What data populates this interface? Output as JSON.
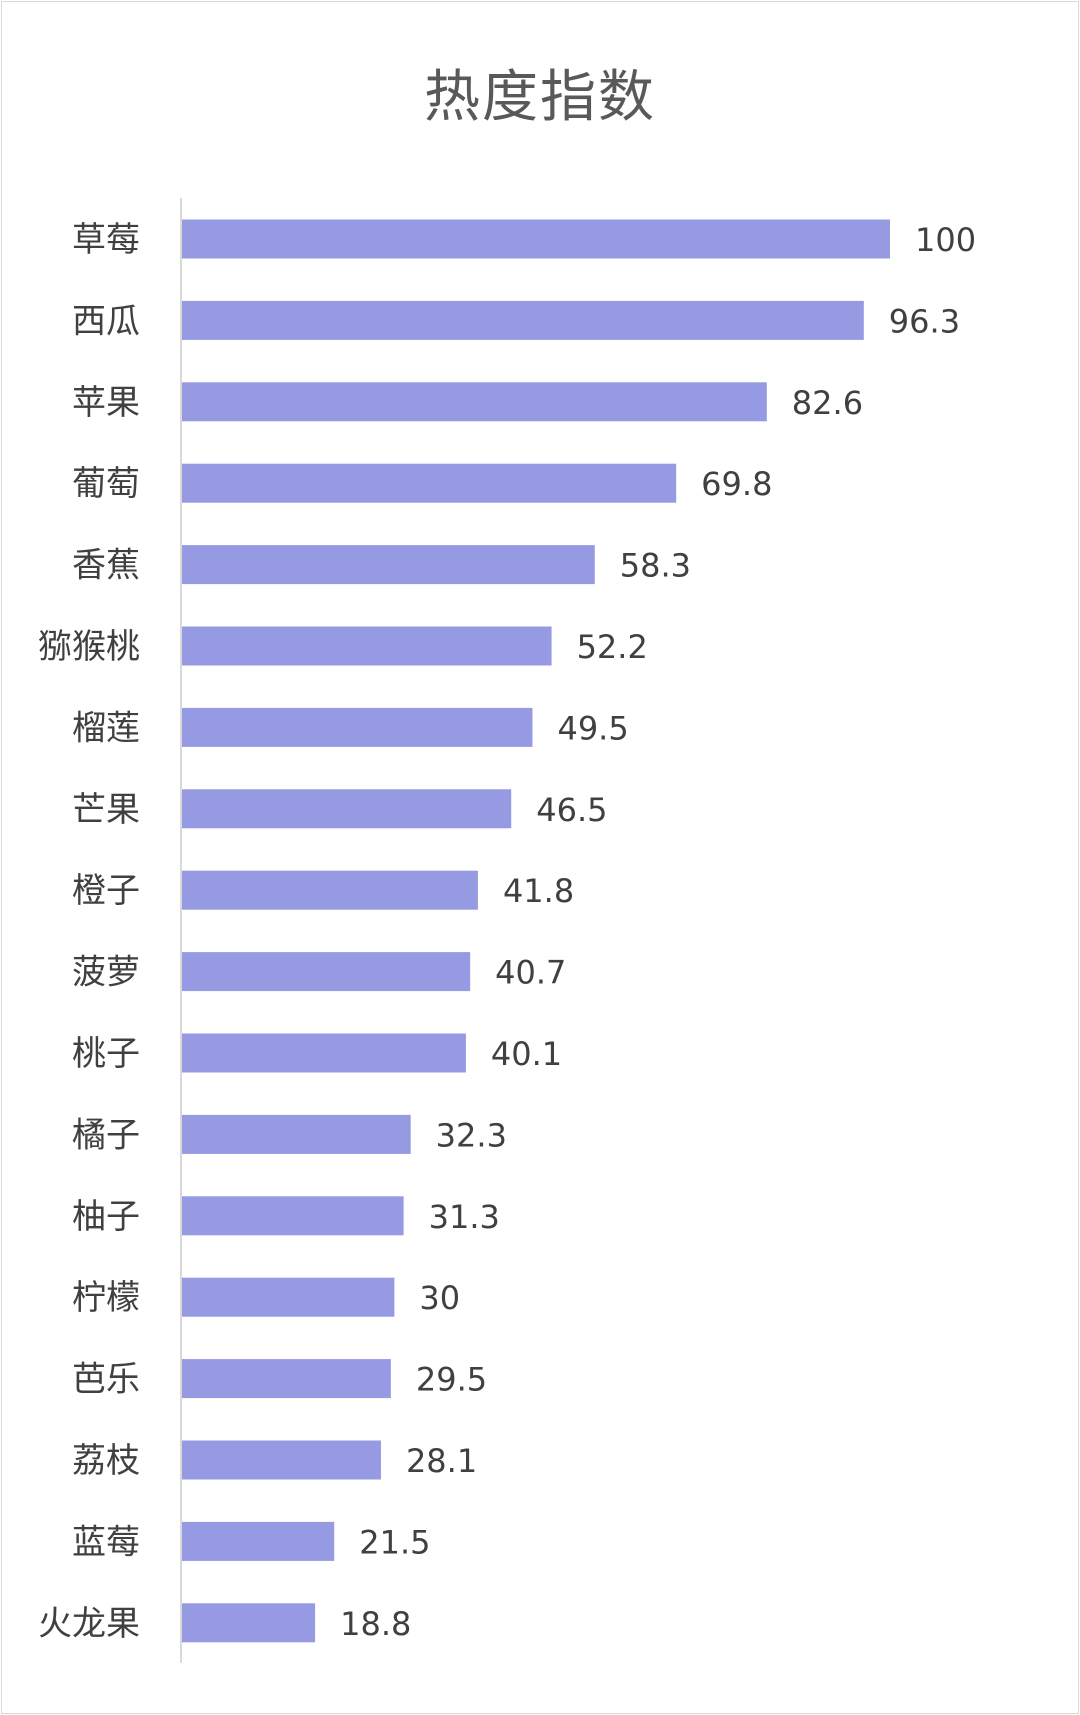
{
  "chart_data": {
    "type": "bar",
    "orientation": "horizontal",
    "title": "热度指数",
    "categories": [
      "草莓",
      "西瓜",
      "苹果",
      "葡萄",
      "香蕉",
      "猕猴桃",
      "榴莲",
      "芒果",
      "橙子",
      "菠萝",
      "桃子",
      "橘子",
      "柚子",
      "柠檬",
      "芭乐",
      "荔枝",
      "蓝莓",
      "火龙果"
    ],
    "values": [
      100,
      96.3,
      82.6,
      69.8,
      58.3,
      52.2,
      49.5,
      46.5,
      41.8,
      40.7,
      40.1,
      32.3,
      31.3,
      30,
      29.5,
      28.1,
      21.5,
      18.8
    ],
    "value_labels": [
      "100",
      "96.3",
      "82.6",
      "69.8",
      "58.3",
      "52.2",
      "49.5",
      "46.5",
      "41.8",
      "40.7",
      "40.1",
      "32.3",
      "31.3",
      "30",
      "29.5",
      "28.1",
      "21.5",
      "18.8"
    ],
    "xlim": [
      0,
      100
    ],
    "grid": false,
    "legend": "none",
    "bar_color": "#969ae3",
    "axis_color": "#d9d9d9"
  }
}
